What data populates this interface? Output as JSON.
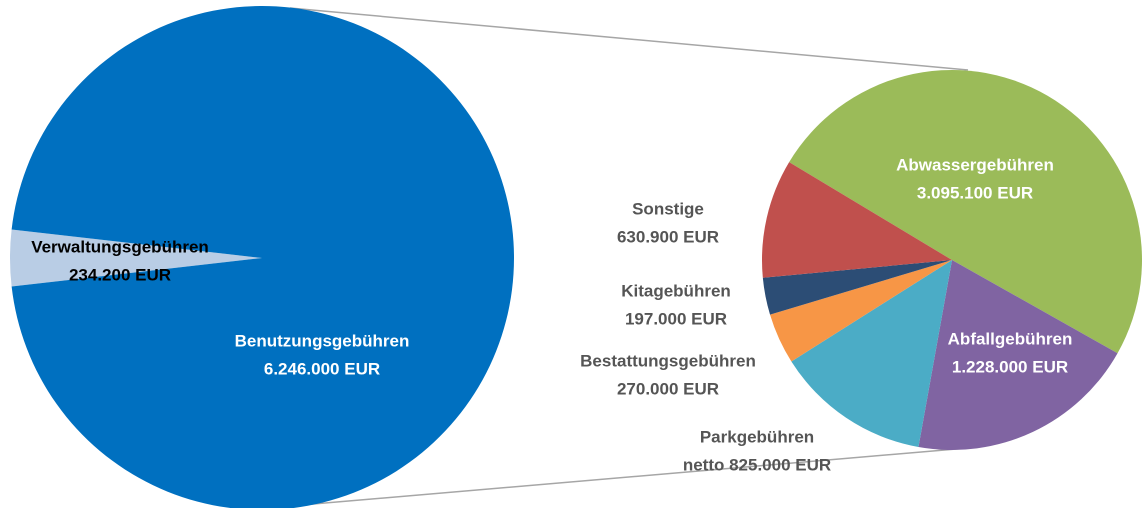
{
  "chart_data": [
    {
      "type": "pie",
      "categories": [
        "Verwaltungsgebühren",
        "Benutzungsgebühren"
      ],
      "values": [
        234200,
        6246000
      ],
      "value_labels": [
        "234.200 EUR",
        "6.246.000 EUR"
      ],
      "colors": [
        "#b9cde5",
        "#0070c0"
      ]
    },
    {
      "type": "pie",
      "categories": [
        "Abwassergebühren",
        "Abfallgebühren",
        "Parkgebühren",
        "Bestattungsgebühren",
        "Kitagebühren",
        "Sonstige"
      ],
      "values": [
        3095100,
        1228000,
        825000,
        270000,
        197000,
        630900
      ],
      "value_labels": [
        "3.095.100 EUR",
        "1.228.000 EUR",
        "netto 825.000 EUR",
        "270.000 EUR",
        "197.000 EUR",
        "630.900 EUR"
      ],
      "colors": [
        "#9bbb59",
        "#8064a2",
        "#4bacc6",
        "#f79646",
        "#2c4d75",
        "#c0504d"
      ]
    }
  ]
}
